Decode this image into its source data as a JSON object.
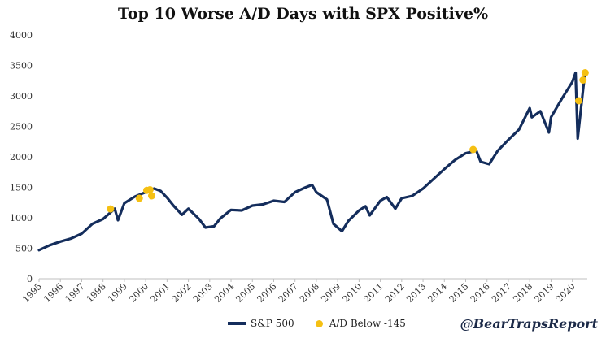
{
  "chart_data": {
    "type": "line",
    "title": "Top 10 Worse A/D Days with SPX Positive%",
    "xlabel": "",
    "ylabel": "",
    "xlim": [
      1995,
      2020.7
    ],
    "ylim": [
      0,
      4000
    ],
    "yticks": [
      0,
      500,
      1000,
      1500,
      2000,
      2500,
      3000,
      3500,
      4000
    ],
    "xticks": [
      "1995",
      "1996",
      "1997",
      "1998",
      "1999",
      "2000",
      "2001",
      "2002",
      "2003",
      "2004",
      "2005",
      "2006",
      "2007",
      "2008",
      "2009",
      "2010",
      "2011",
      "2012",
      "2013",
      "2014",
      "2015",
      "2016",
      "2017",
      "2018",
      "2019",
      "2020"
    ],
    "grid": false,
    "legend_position": "bottom",
    "colors": {
      "line": "#142d5c",
      "marker": "#f5c013"
    },
    "series": [
      {
        "name": "S&P 500",
        "kind": "line",
        "x": [
          1995.0,
          1995.5,
          1996.0,
          1996.5,
          1997.0,
          1997.5,
          1998.0,
          1998.55,
          1998.7,
          1999.0,
          1999.5,
          2000.0,
          2000.2,
          2000.4,
          2000.7,
          2001.0,
          2001.3,
          2001.7,
          2002.0,
          2002.5,
          2002.8,
          2003.2,
          2003.5,
          2004.0,
          2004.5,
          2005.0,
          2005.5,
          2006.0,
          2006.5,
          2007.0,
          2007.5,
          2007.8,
          2008.0,
          2008.5,
          2008.8,
          2009.2,
          2009.5,
          2010.0,
          2010.3,
          2010.5,
          2011.0,
          2011.3,
          2011.7,
          2012.0,
          2012.5,
          2013.0,
          2013.5,
          2014.0,
          2014.5,
          2015.0,
          2015.5,
          2015.7,
          2016.1,
          2016.5,
          2017.0,
          2017.5,
          2018.0,
          2018.1,
          2018.5,
          2018.9,
          2019.0,
          2019.5,
          2020.0,
          2020.15,
          2020.25,
          2020.5,
          2020.6
        ],
        "y": [
          470,
          550,
          610,
          660,
          740,
          900,
          980,
          1150,
          960,
          1240,
          1350,
          1420,
          1450,
          1480,
          1440,
          1330,
          1200,
          1050,
          1150,
          980,
          840,
          860,
          990,
          1130,
          1120,
          1200,
          1220,
          1280,
          1260,
          1420,
          1500,
          1540,
          1420,
          1300,
          900,
          780,
          950,
          1120,
          1190,
          1040,
          1280,
          1340,
          1150,
          1320,
          1360,
          1480,
          1640,
          1800,
          1950,
          2060,
          2100,
          1920,
          1880,
          2100,
          2280,
          2450,
          2800,
          2650,
          2750,
          2400,
          2650,
          2950,
          3230,
          3380,
          2300,
          3100,
          3400
        ]
      },
      {
        "name": "A/D Below -145",
        "kind": "scatter",
        "points": [
          {
            "x": 1998.35,
            "y": 1145
          },
          {
            "x": 1999.7,
            "y": 1320
          },
          {
            "x": 2000.05,
            "y": 1450
          },
          {
            "x": 2000.2,
            "y": 1460
          },
          {
            "x": 2000.28,
            "y": 1360
          },
          {
            "x": 2015.35,
            "y": 2120
          },
          {
            "x": 2020.3,
            "y": 2920
          },
          {
            "x": 2020.5,
            "y": 3260
          },
          {
            "x": 2020.6,
            "y": 3380
          }
        ]
      }
    ]
  },
  "legend": {
    "line_label": "S&P 500",
    "marker_label": "A/D Below -145"
  },
  "watermark": "@BearTrapsReport"
}
